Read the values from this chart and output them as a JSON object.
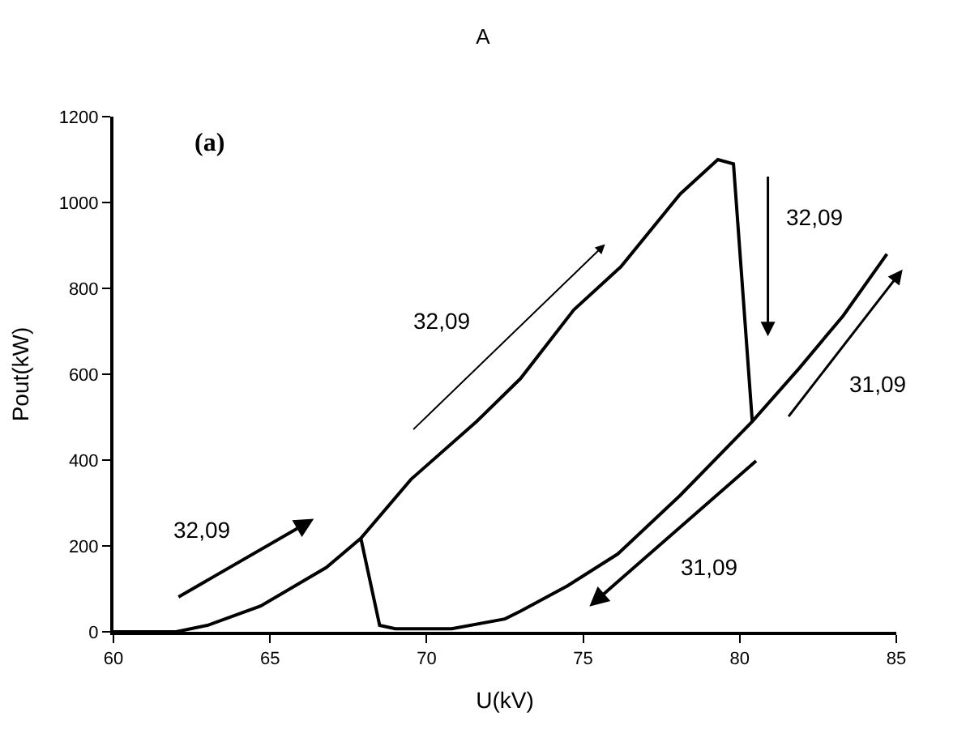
{
  "chart_data": {
    "type": "line",
    "title": "A",
    "xlabel": "U(kV)",
    "ylabel": "Pout(kW)",
    "annotations": [
      "(a)",
      "32,09",
      "32,09",
      "32,09",
      "31,09",
      "31,09"
    ],
    "series": [
      {
        "color": "#000000",
        "x": [
          60,
          62,
          63.0,
          64.7,
          66.8,
          67.9,
          69.5,
          71.6,
          73.0,
          74.7,
          76.2,
          78.1,
          79.3,
          79.8,
          80.4
        ],
        "values": [
          0,
          0,
          15,
          60,
          150,
          218,
          355,
          490,
          590,
          750,
          850,
          1020,
          1100,
          1090,
          490
        ]
      },
      {
        "color": "#000000",
        "x": [
          67.9,
          68.5,
          69.0,
          70.8,
          72.5,
          73.0,
          74.5,
          76.1,
          78.1,
          80.4,
          81.9,
          83.3,
          84.7
        ],
        "values": [
          218,
          15,
          7,
          7,
          30,
          48,
          107,
          181,
          318,
          490,
          614,
          736,
          880
        ]
      }
    ],
    "xlim": [
      60,
      85
    ],
    "xticks": [
      60,
      65,
      70,
      75,
      80,
      85
    ],
    "ylim": [
      0,
      1200
    ],
    "yticks": [
      0,
      200,
      400,
      600,
      800,
      1000,
      1200
    ],
    "marker": "none",
    "line_style": "solid"
  }
}
